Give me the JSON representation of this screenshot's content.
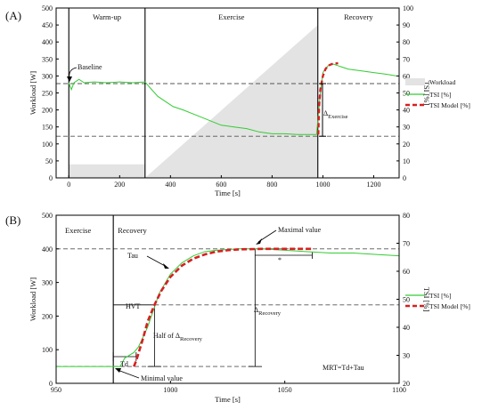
{
  "chart_data": [
    {
      "panel_label": "(A)",
      "type": "line",
      "xlabel": "Time [s]",
      "ylabel_left": "Workload [W]",
      "ylabel_right": "TSI [%]",
      "xlim": [
        -50,
        1300
      ],
      "ylim_left": [
        0,
        500
      ],
      "ylim_right": [
        0,
        100
      ],
      "x_ticks": [
        0,
        200,
        400,
        600,
        800,
        1000,
        1200
      ],
      "y_ticks_left": [
        0,
        50,
        100,
        150,
        200,
        250,
        300,
        350,
        400,
        450,
        500
      ],
      "y_ticks_right": [
        0,
        10,
        20,
        30,
        40,
        50,
        60,
        70,
        80,
        90,
        100
      ],
      "phases": [
        "Warm-up",
        "Exercise",
        "Recovery"
      ],
      "phase_boundaries": [
        0,
        300,
        980
      ],
      "legend": [
        "Workload",
        "TSI [%]",
        "TSI  Model [%]"
      ],
      "legend_position": "right",
      "annotations": [
        "Baseline",
        "Δ",
        "Exercise"
      ],
      "dashed_levels_tsi": [
        55.5,
        24.5
      ],
      "series": [
        {
          "name": "Workload",
          "style": "area",
          "color": "#e3e3e3",
          "axis": "left",
          "points": [
            [
              0,
              40
            ],
            [
              300,
              40
            ],
            [
              300,
              0
            ],
            [
              980,
              450
            ],
            [
              980,
              0
            ],
            [
              0,
              0
            ]
          ]
        },
        {
          "name": "TSI [%]",
          "style": "line",
          "color": "#33cc33",
          "axis": "right",
          "points": [
            [
              0,
              56
            ],
            [
              10,
              52
            ],
            [
              20,
              56
            ],
            [
              40,
              58
            ],
            [
              60,
              56
            ],
            [
              100,
              56.5
            ],
            [
              150,
              56
            ],
            [
              200,
              56.5
            ],
            [
              250,
              56
            ],
            [
              300,
              56.5
            ],
            [
              320,
              53
            ],
            [
              350,
              48
            ],
            [
              380,
              45
            ],
            [
              410,
              42
            ],
            [
              450,
              40
            ],
            [
              500,
              37
            ],
            [
              550,
              34
            ],
            [
              600,
              31
            ],
            [
              650,
              30
            ],
            [
              700,
              29
            ],
            [
              750,
              27
            ],
            [
              800,
              26
            ],
            [
              850,
              26
            ],
            [
              900,
              25.5
            ],
            [
              950,
              25.5
            ],
            [
              975,
              25.5
            ],
            [
              990,
              50
            ],
            [
              1000,
              62
            ],
            [
              1020,
              66
            ],
            [
              1040,
              67
            ],
            [
              1060,
              66
            ],
            [
              1100,
              64
            ],
            [
              1150,
              63
            ],
            [
              1200,
              62
            ],
            [
              1250,
              61
            ],
            [
              1290,
              60
            ]
          ]
        },
        {
          "name": "TSI  Model [%]",
          "style": "dashed",
          "color": "#d62020",
          "axis": "right",
          "points": [
            [
              982,
              25.5
            ],
            [
              985,
              42
            ],
            [
              990,
              52
            ],
            [
              1000,
              60
            ],
            [
              1010,
              64
            ],
            [
              1020,
              66
            ],
            [
              1035,
              67
            ],
            [
              1060,
              67.5
            ]
          ]
        }
      ]
    },
    {
      "panel_label": "(B)",
      "type": "line",
      "xlabel": "Time [s]",
      "ylabel_left": "Workload [W]",
      "ylabel_right": "TSI [%]",
      "xlim": [
        950,
        1100
      ],
      "ylim_left": [
        0,
        500
      ],
      "ylim_right": [
        20,
        80
      ],
      "x_ticks": [
        950,
        1000,
        1050,
        1100
      ],
      "y_ticks_left": [
        0,
        100,
        200,
        300,
        400,
        500
      ],
      "y_ticks_right": [
        20,
        30,
        40,
        50,
        60,
        70,
        80
      ],
      "phases": [
        "Exercise",
        "Recovery"
      ],
      "phase_boundaries": [
        975
      ],
      "legend": [
        "TSI [%]",
        "TSI  Model [%]"
      ],
      "legend_position": "right",
      "annotations": [
        "Maximal value",
        "Tau",
        "HVT",
        "Δ",
        "Recovery",
        "Half of Δ",
        "Recovery",
        "Td",
        "Minimal value",
        "*",
        "MRT=Td+Tau"
      ],
      "dashed_levels_tsi": [
        68,
        48,
        26
      ],
      "series": [
        {
          "name": "TSI [%]",
          "style": "line",
          "color": "#33cc33",
          "axis": "right",
          "points": [
            [
              950,
              26
            ],
            [
              955,
              26
            ],
            [
              960,
              26
            ],
            [
              965,
              26
            ],
            [
              970,
              26
            ],
            [
              975,
              26
            ],
            [
              978,
              26
            ],
            [
              980,
              29
            ],
            [
              984,
              31
            ],
            [
              986,
              33
            ],
            [
              990,
              40
            ],
            [
              995,
              52
            ],
            [
              1000,
              59
            ],
            [
              1005,
              63
            ],
            [
              1010,
              65.5
            ],
            [
              1015,
              67
            ],
            [
              1020,
              67.5
            ],
            [
              1030,
              68
            ],
            [
              1040,
              68
            ],
            [
              1050,
              67.5
            ],
            [
              1060,
              67
            ],
            [
              1070,
              66.5
            ],
            [
              1080,
              66.5
            ],
            [
              1090,
              66
            ],
            [
              1100,
              65.5
            ]
          ]
        },
        {
          "name": "TSI  Model [%]",
          "style": "dashed",
          "color": "#d62020",
          "axis": "right",
          "points": [
            [
              984,
              26
            ],
            [
              985,
              28
            ],
            [
              988,
              36
            ],
            [
              990,
              42
            ],
            [
              993,
              48
            ],
            [
              996,
              53
            ],
            [
              1000,
              58
            ],
            [
              1005,
              62
            ],
            [
              1010,
              64.5
            ],
            [
              1015,
              66
            ],
            [
              1020,
              67
            ],
            [
              1025,
              67.5
            ],
            [
              1030,
              67.8
            ],
            [
              1040,
              68
            ],
            [
              1062,
              68
            ]
          ]
        }
      ]
    }
  ]
}
